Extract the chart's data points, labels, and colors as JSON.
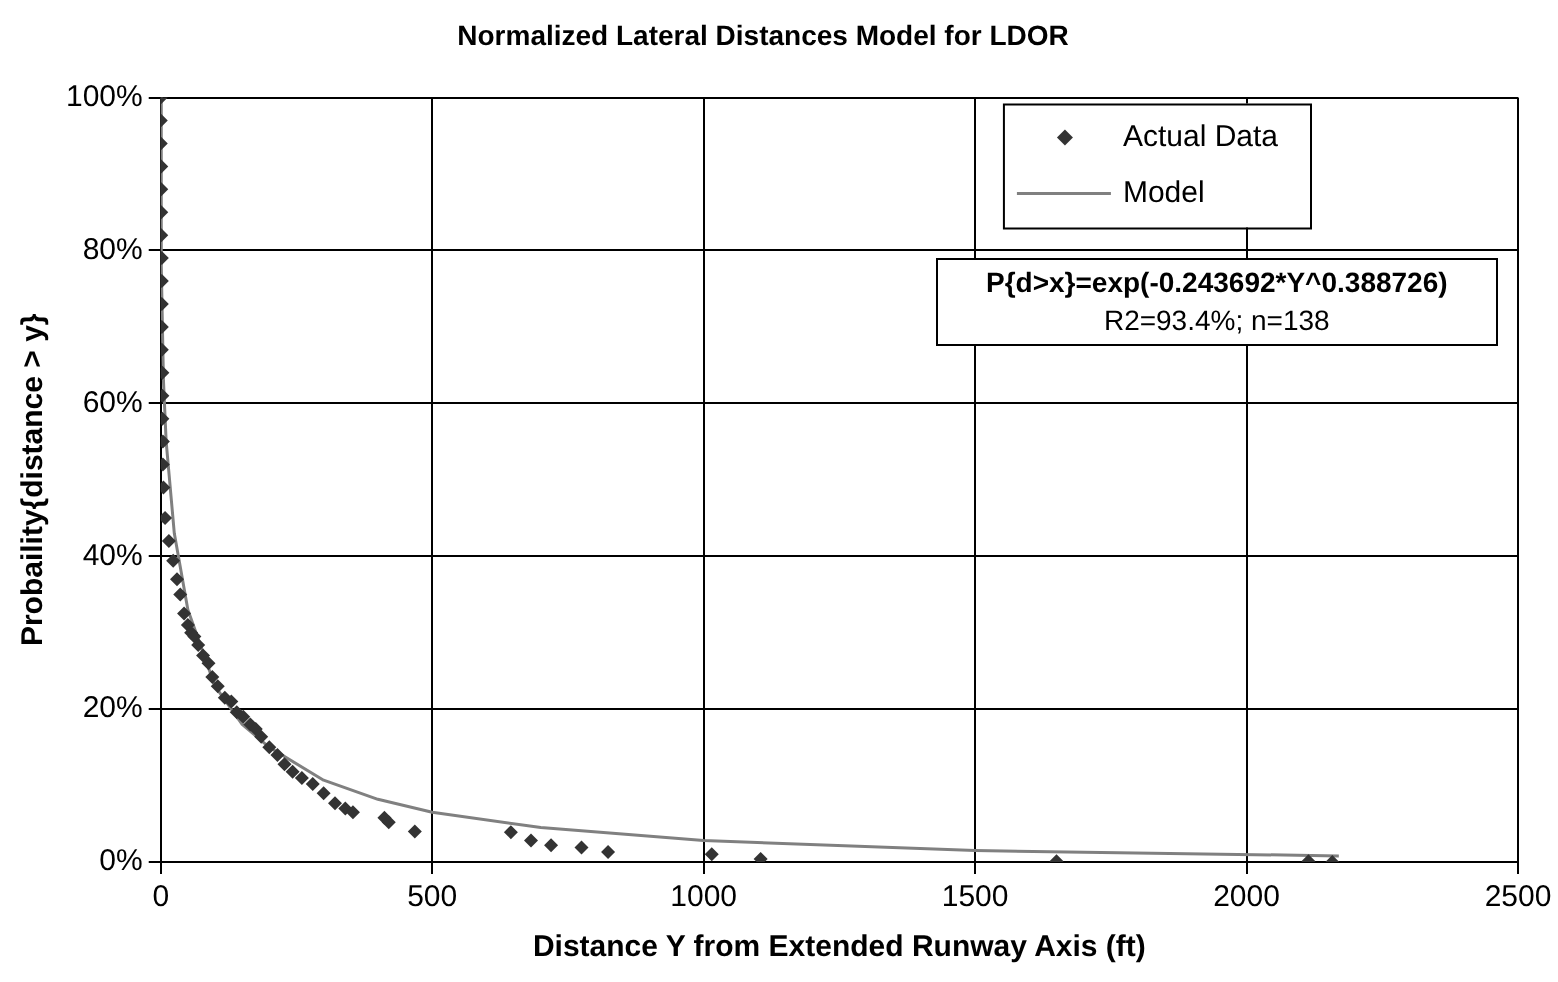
{
  "chart_data": {
    "type": "scatter",
    "title": "Normalized Lateral Distances Model for LDOR",
    "xlabel": "Distance Y from Extended Runway Axis (ft)",
    "ylabel": "Probaility{distance > y}",
    "xlim": [
      0,
      2500
    ],
    "xticks": [
      0,
      500,
      1000,
      1500,
      2000,
      2500
    ],
    "ylim": [
      0,
      100
    ],
    "yticks": [
      {
        "value": 0,
        "label": "0%"
      },
      {
        "value": 20,
        "label": "20%"
      },
      {
        "value": 40,
        "label": "40%"
      },
      {
        "value": 60,
        "label": "60%"
      },
      {
        "value": 80,
        "label": "80%"
      },
      {
        "value": 100,
        "label": "100%"
      }
    ],
    "grid": true,
    "legend": "top right",
    "annotations": [
      "P{d>x}=exp(-0.243692*Y^0.388726)",
      "R2=93.4%; n=138"
    ],
    "series": [
      {
        "name": "Actual Data",
        "type": "scatter",
        "marker": "diamond",
        "color": "#333333",
        "x": [
          0,
          0,
          0,
          1,
          1,
          1,
          1,
          2,
          2,
          2,
          2,
          2,
          3,
          3,
          3,
          4,
          4,
          5,
          8,
          15,
          23,
          30,
          36,
          43,
          50,
          56,
          62,
          69,
          78,
          88,
          95,
          105,
          118,
          130,
          140,
          152,
          165,
          175,
          185,
          200,
          215,
          228,
          243,
          260,
          280,
          300,
          321,
          340,
          354,
          412,
          420,
          468,
          645,
          682,
          719,
          775,
          824,
          1015,
          1105,
          1650,
          2114,
          2158
        ],
        "values": [
          100,
          97,
          94,
          91,
          88,
          85,
          82,
          79,
          76,
          73,
          70,
          67,
          64,
          61,
          58,
          55,
          52,
          49,
          45,
          42,
          39.4,
          37,
          35,
          32.5,
          31,
          30,
          29.5,
          28.4,
          27,
          26,
          24.2,
          23,
          21.5,
          21,
          19.6,
          19,
          18,
          17.4,
          16.4,
          15,
          14,
          12.8,
          11.8,
          11,
          10.2,
          9,
          7.7,
          7,
          6.5,
          5.8,
          5.2,
          4,
          3.9,
          2.8,
          2.2,
          1.9,
          1.3,
          1,
          0.4,
          0.1,
          0.1,
          0
        ]
      },
      {
        "name": "Model",
        "type": "line",
        "marker": "none",
        "color": "#808080",
        "x": [
          0,
          1,
          5,
          10,
          25,
          50,
          100,
          150,
          200,
          300,
          400,
          500,
          700,
          1000,
          1500,
          2170
        ],
        "values": [
          100,
          78,
          63,
          55,
          43,
          33,
          23,
          18,
          15,
          10.7,
          8.2,
          6.5,
          4.5,
          2.8,
          1.5,
          0.8
        ]
      }
    ]
  }
}
